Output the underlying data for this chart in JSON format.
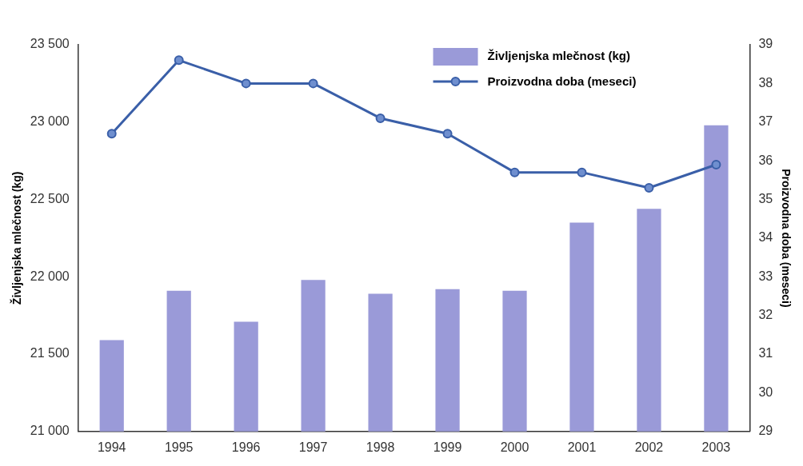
{
  "chart_data": {
    "type": "bar",
    "categories": [
      "1994",
      "1995",
      "1996",
      "1997",
      "1998",
      "1999",
      "2000",
      "2001",
      "2002",
      "2003"
    ],
    "series": [
      {
        "name": "Življenjska mlečnost (kg)",
        "color": "#9a9ad8",
        "values": [
          21590,
          21910,
          21710,
          21980,
          21890,
          21920,
          21910,
          22350,
          22440,
          22980
        ]
      },
      {
        "name": "Proizvodna doba (meseci)",
        "type": "line",
        "axis": "y2",
        "color": "#3a5fa8",
        "values": [
          36.7,
          38.6,
          38.0,
          38.0,
          37.1,
          36.7,
          35.7,
          35.7,
          35.3,
          35.9
        ]
      }
    ],
    "ylabel": "Življenjska mlečnost (kg)",
    "y2label": "Proizvodna doba (meseci)",
    "ylim": [
      21000,
      23500
    ],
    "yticks": [
      {
        "value": 21000,
        "label": "21 000"
      },
      {
        "value": 21500,
        "label": "21 500"
      },
      {
        "value": 22000,
        "label": "22 000"
      },
      {
        "value": 22500,
        "label": "22 500"
      },
      {
        "value": 23000,
        "label": "23 000"
      },
      {
        "value": 23500,
        "label": "23 500"
      }
    ],
    "y2lim": [
      29,
      39
    ],
    "y2ticks": [
      29,
      30,
      31,
      32,
      33,
      34,
      35,
      36,
      37,
      38,
      39
    ],
    "grid": false,
    "legend": "top right",
    "marker": "circle",
    "line_style": "solid"
  }
}
